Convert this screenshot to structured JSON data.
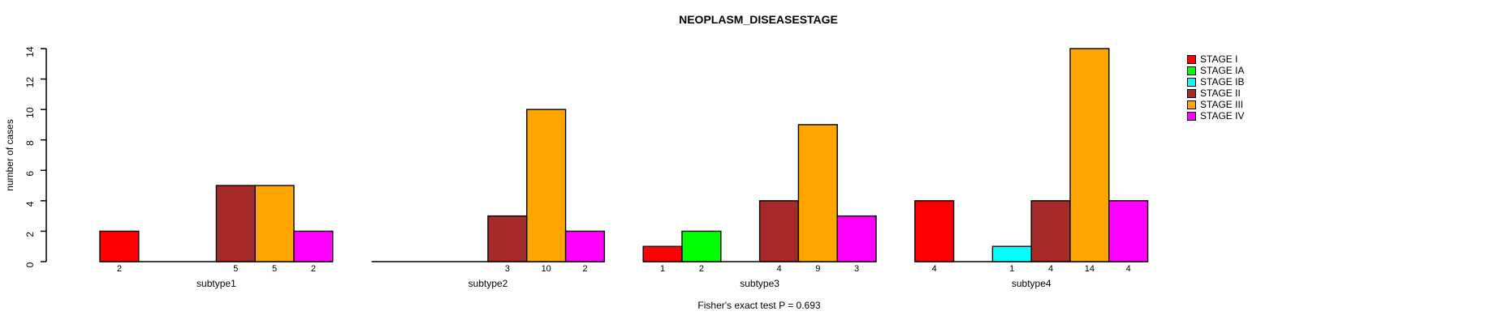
{
  "chart_data": {
    "type": "bar",
    "title": "NEOPLASM_DISEASESTAGE",
    "ylabel": "number of cases",
    "xlabel": "",
    "annotation": "Fisher's exact test P = 0.693",
    "categories": [
      "subtype1",
      "subtype2",
      "subtype3",
      "subtype4"
    ],
    "series": [
      {
        "name": "STAGE I",
        "color": "#FF0000",
        "values": [
          2,
          0,
          1,
          4
        ]
      },
      {
        "name": "STAGE IA",
        "color": "#00FF00",
        "values": [
          0,
          0,
          2,
          0
        ]
      },
      {
        "name": "STAGE IB",
        "color": "#00FFFF",
        "values": [
          0,
          0,
          0,
          1
        ]
      },
      {
        "name": "STAGE II",
        "color": "#A52A2A",
        "values": [
          5,
          3,
          4,
          4
        ]
      },
      {
        "name": "STAGE III",
        "color": "#FFA500",
        "values": [
          5,
          10,
          9,
          14
        ]
      },
      {
        "name": "STAGE IV",
        "color": "#FF00FF",
        "values": [
          2,
          2,
          3,
          4
        ]
      }
    ],
    "yticks": [
      0,
      2,
      4,
      6,
      8,
      10,
      12,
      14
    ],
    "ylim": [
      0,
      14
    ],
    "bar_value_labels_shown": true,
    "zero_bars_hidden": true,
    "grid": false,
    "legend_position": "right",
    "axis_color": "#000000",
    "bar_border_color": "#000000",
    "background_color": "#FFFFFF"
  }
}
